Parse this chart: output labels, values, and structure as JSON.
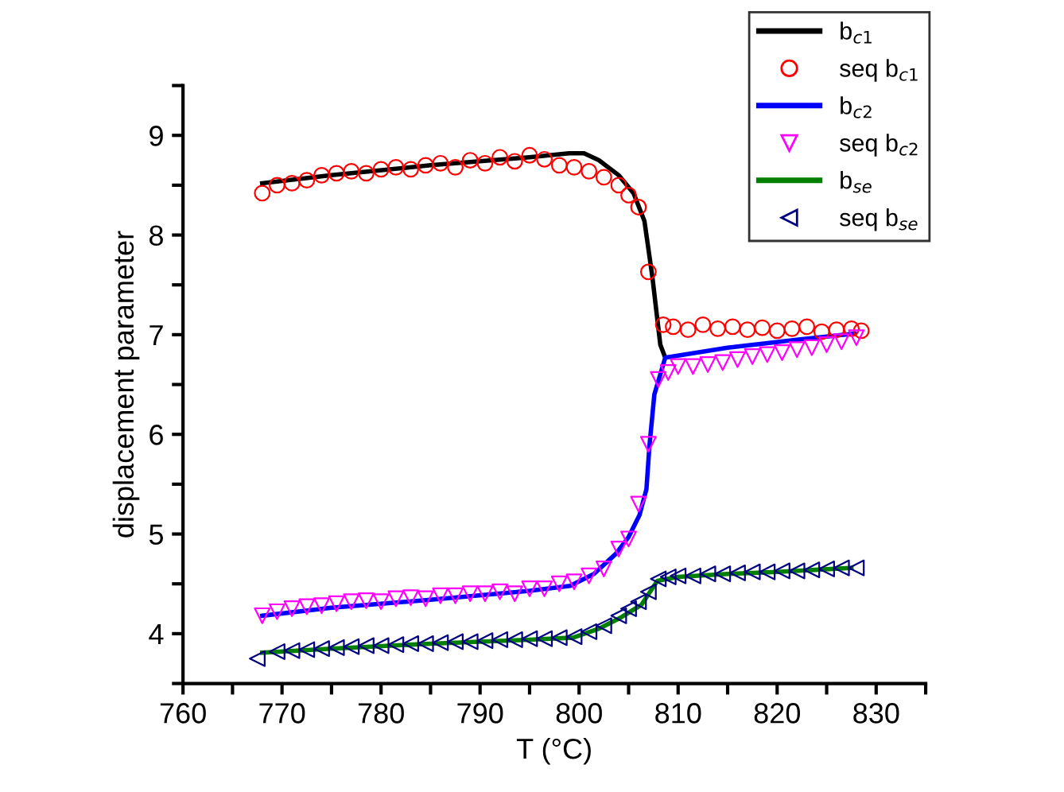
{
  "chart_data": {
    "type": "line",
    "xlabel": "T (°C)",
    "ylabel": "displacement parameter",
    "xlim": [
      760,
      835
    ],
    "ylim": [
      3.5,
      9.5
    ],
    "xticks": [
      760,
      {
        "value": 765,
        "label": null
      },
      770,
      {
        "value": 775,
        "label": null
      },
      780,
      {
        "value": 785,
        "label": null
      },
      790,
      {
        "value": 795,
        "label": null
      },
      800,
      {
        "value": 805,
        "label": null
      },
      810,
      {
        "value": 815,
        "label": null
      },
      820,
      {
        "value": 825,
        "label": null
      },
      830,
      {
        "value": 835,
        "label": null
      }
    ],
    "yticks": [
      {
        "value": 3.5,
        "label": null
      },
      4,
      {
        "value": 4.5,
        "label": null
      },
      5,
      {
        "value": 5.5,
        "label": null
      },
      6,
      {
        "value": 6.5,
        "label": null
      },
      7,
      {
        "value": 7.5,
        "label": null
      },
      8,
      {
        "value": 8.5,
        "label": null
      },
      9,
      {
        "value": 9.5,
        "label": null
      }
    ],
    "grid": false,
    "legend": "top right",
    "series": [
      {
        "name": "b$_{c1}$",
        "color": "#000000",
        "marker": "none",
        "x": [
          768,
          775,
          785,
          795,
          799,
          800.5,
          802,
          804,
          805.5,
          806.6,
          807.4,
          808.2,
          808.7
        ],
        "values": [
          8.52,
          8.6,
          8.7,
          8.78,
          8.82,
          8.82,
          8.75,
          8.6,
          8.42,
          8.14,
          7.58,
          6.9,
          6.77
        ]
      },
      {
        "name": "seq b$_{c1}$",
        "type": "scatter",
        "color": "#ff0000",
        "marker": "circle",
        "x": [
          768,
          769.5,
          771,
          772.5,
          774,
          775.5,
          777,
          778.5,
          780,
          781.5,
          783,
          784.5,
          786,
          787.5,
          789,
          790.5,
          792,
          793.5,
          795,
          796.5,
          798,
          799.5,
          801,
          802.5,
          804,
          805,
          806,
          807,
          808.5,
          809.5,
          811,
          812.5,
          814,
          815.5,
          817,
          818.5,
          820,
          821.5,
          823,
          824.5,
          826,
          827.5,
          828.5
        ],
        "values": [
          8.42,
          8.5,
          8.52,
          8.55,
          8.6,
          8.62,
          8.64,
          8.62,
          8.66,
          8.68,
          8.66,
          8.7,
          8.72,
          8.68,
          8.75,
          8.72,
          8.78,
          8.74,
          8.8,
          8.76,
          8.7,
          8.68,
          8.64,
          8.58,
          8.5,
          8.4,
          8.28,
          7.63,
          7.1,
          7.08,
          7.05,
          7.1,
          7.06,
          7.08,
          7.05,
          7.07,
          7.04,
          7.06,
          7.08,
          7.03,
          7.05,
          7.06,
          7.04
        ]
      },
      {
        "name": "b$_{c2}$",
        "color": "#0000ff",
        "marker": "none",
        "x": [
          768,
          775,
          785,
          795,
          799.1,
          801.5,
          803.7,
          805,
          806.1,
          806.8,
          807.1,
          807.6,
          808.7,
          815,
          822,
          827.8
        ],
        "values": [
          4.18,
          4.26,
          4.34,
          4.43,
          4.48,
          4.6,
          4.8,
          4.97,
          5.19,
          5.45,
          5.88,
          6.4,
          6.77,
          6.87,
          6.95,
          7.01
        ]
      },
      {
        "name": "seq b$_{c2}$",
        "type": "scatter",
        "color": "#ff00ff",
        "marker": "triangle_down",
        "x": [
          768,
          769.5,
          771,
          772.5,
          774,
          775.5,
          777,
          778.5,
          780,
          781.5,
          783,
          784.5,
          786,
          787.5,
          789,
          790.5,
          792,
          793.5,
          795,
          796.5,
          798,
          799.5,
          801,
          802.5,
          804,
          805,
          806,
          807,
          808,
          809,
          810,
          811.5,
          813,
          814.5,
          816,
          817.5,
          819,
          820.5,
          822,
          823.5,
          825,
          826.5,
          828
        ],
        "values": [
          4.18,
          4.22,
          4.25,
          4.27,
          4.28,
          4.3,
          4.32,
          4.33,
          4.32,
          4.35,
          4.36,
          4.35,
          4.38,
          4.38,
          4.4,
          4.4,
          4.42,
          4.4,
          4.45,
          4.45,
          4.5,
          4.52,
          4.58,
          4.65,
          4.85,
          4.95,
          5.3,
          5.9,
          6.55,
          6.62,
          6.68,
          6.68,
          6.7,
          6.72,
          6.75,
          6.78,
          6.8,
          6.82,
          6.85,
          6.87,
          6.9,
          6.93,
          6.97
        ]
      },
      {
        "name": "b$_{se}$",
        "color": "#008000",
        "marker": "none",
        "x": [
          768,
          775,
          785,
          795,
          799.4,
          802,
          804,
          806.3,
          807.9,
          810,
          815,
          820,
          827.5
        ],
        "values": [
          3.81,
          3.85,
          3.9,
          3.94,
          3.96,
          4.05,
          4.15,
          4.29,
          4.53,
          4.57,
          4.6,
          4.62,
          4.66
        ]
      },
      {
        "name": "seq b$_{se}$",
        "type": "scatter",
        "color": "#000080",
        "marker": "triangle_left",
        "x": [
          767.5,
          769.5,
          771,
          772.5,
          774,
          775.5,
          777,
          778.5,
          780,
          781.5,
          783,
          784.5,
          786,
          787.5,
          789,
          790.5,
          792,
          793.5,
          795,
          796.5,
          798,
          799.5,
          801,
          802.5,
          804,
          805,
          806,
          807,
          808,
          809,
          810,
          811.5,
          813,
          814.5,
          816,
          817.5,
          819,
          820.5,
          822,
          823.5,
          825,
          826.5,
          828
        ],
        "values": [
          3.75,
          3.82,
          3.83,
          3.84,
          3.85,
          3.86,
          3.87,
          3.88,
          3.88,
          3.89,
          3.9,
          3.9,
          3.91,
          3.92,
          3.92,
          3.93,
          3.94,
          3.94,
          3.95,
          3.95,
          3.96,
          3.97,
          4.02,
          4.08,
          4.18,
          4.25,
          4.32,
          4.42,
          4.55,
          4.57,
          4.58,
          4.58,
          4.6,
          4.6,
          4.61,
          4.62,
          4.62,
          4.63,
          4.63,
          4.64,
          4.65,
          4.66,
          4.66
        ]
      }
    ]
  }
}
